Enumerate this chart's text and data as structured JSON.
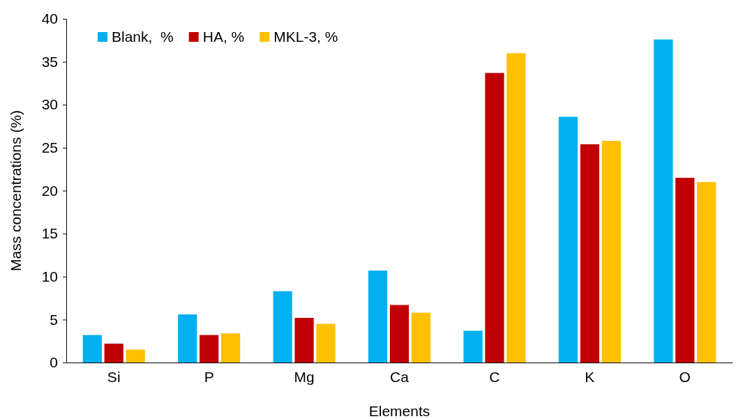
{
  "chart_data": {
    "type": "bar",
    "xlabel": "Elements",
    "ylabel": "Mass concentrations (%)",
    "categories": [
      "Si",
      "P",
      "Mg",
      "Ca",
      "C",
      "K",
      "O"
    ],
    "series": [
      {
        "name": "Blank,  %",
        "color": "#00b0f0",
        "values": [
          3.2,
          5.6,
          8.3,
          10.7,
          3.7,
          28.6,
          37.6
        ]
      },
      {
        "name": "HA, %",
        "color": "#c00000",
        "values": [
          2.2,
          3.2,
          5.2,
          6.7,
          33.7,
          25.4,
          21.5
        ]
      },
      {
        "name": "MKL-3, %",
        "color": "#ffc000",
        "values": [
          1.5,
          3.4,
          4.5,
          5.8,
          36.0,
          25.8,
          21.0
        ]
      }
    ],
    "ylim": [
      0,
      40
    ],
    "yticks": [
      0,
      5,
      10,
      15,
      20,
      25,
      30,
      35,
      40
    ],
    "grid": false,
    "legend": "top left"
  }
}
